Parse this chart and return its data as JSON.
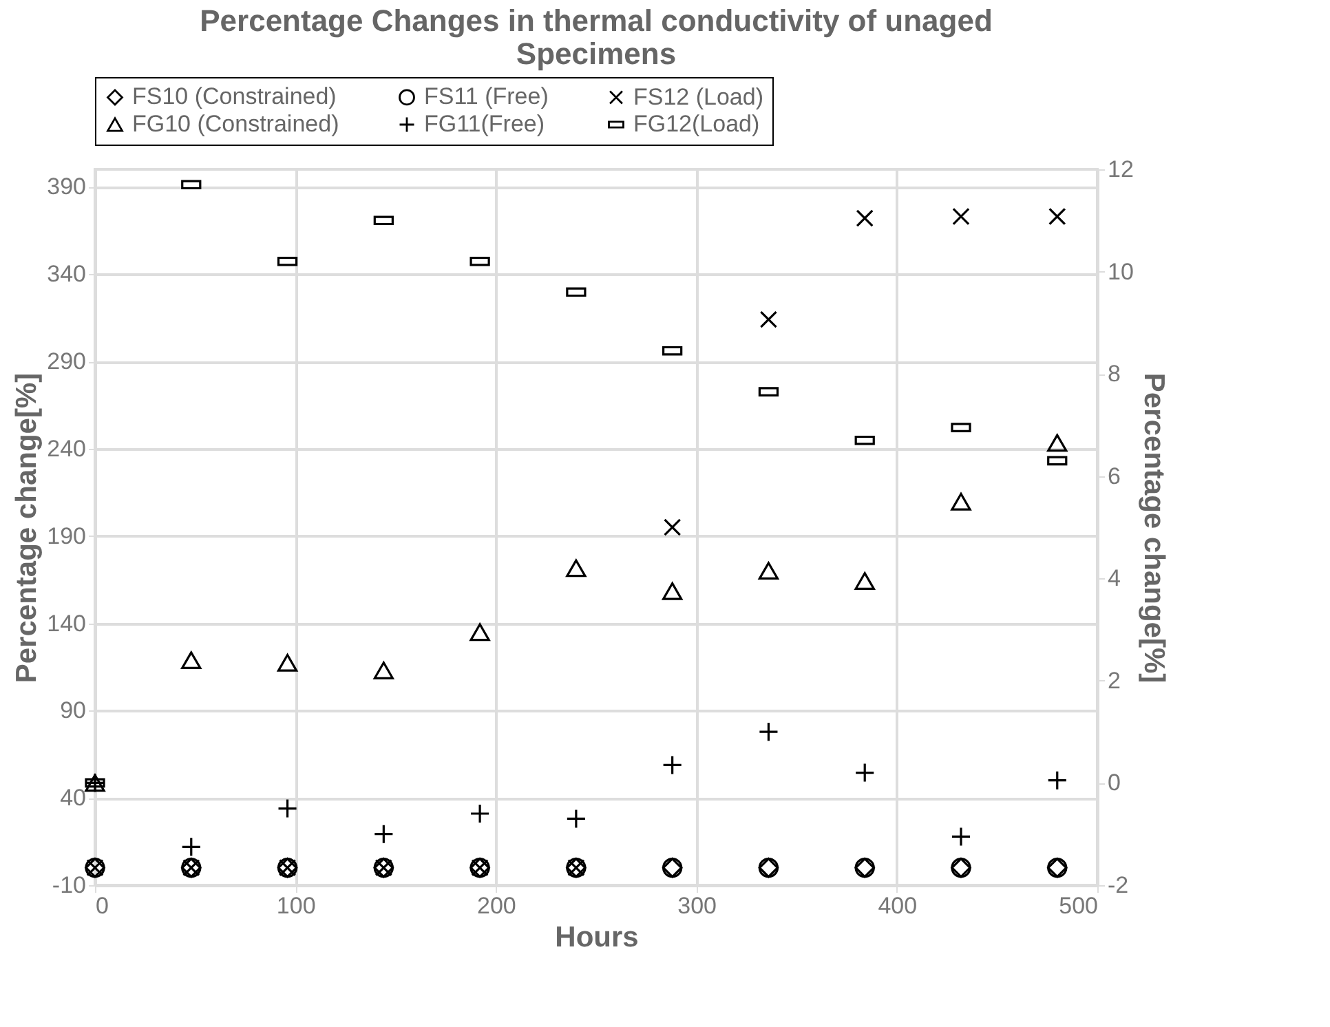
{
  "chart_data": {
    "type": "scatter",
    "title": "Percentage Changes in thermal conductivity of unaged Specimens",
    "xlabel": "Hours",
    "ylabel": "Percentage change[%]",
    "y2label": "Percentage change[%]",
    "x": [
      0,
      48,
      96,
      144,
      192,
      240,
      288,
      336,
      384,
      432,
      480
    ],
    "xlim": [
      0,
      500
    ],
    "xticks": [
      0,
      100,
      200,
      300,
      400,
      500
    ],
    "ylim": [
      -10,
      400
    ],
    "yticks": [
      -10,
      40,
      90,
      140,
      190,
      240,
      290,
      340,
      390
    ],
    "y2lim": [
      -2,
      12
    ],
    "y2ticks": [
      -2,
      0,
      2,
      4,
      6,
      8,
      10,
      12
    ],
    "grid": true,
    "legend": "top",
    "series": [
      {
        "name": "FS10 (Constrained)",
        "color": "#000000",
        "marker": "diamond",
        "values": [
          0,
          0,
          0,
          0,
          0,
          0,
          0,
          0,
          0,
          0,
          0
        ]
      },
      {
        "name": "FS11 (Free)",
        "color": "#000000",
        "marker": "circle",
        "values": [
          0,
          0,
          0,
          0,
          0,
          0,
          0,
          0,
          0,
          0,
          0
        ]
      },
      {
        "name": "FS12 (Load)",
        "color": "#000000",
        "marker": "x",
        "values": [
          0,
          0,
          0,
          0,
          0,
          0,
          195,
          314,
          372,
          373,
          373
        ]
      },
      {
        "name": "FG10 (Constrained)",
        "color": "#000000",
        "marker": "triangle",
        "axis": "y2",
        "values": [
          0,
          2.4,
          2.35,
          2.2,
          2.95,
          4.2,
          3.75,
          4.15,
          3.95,
          5.5,
          6.65
        ]
      },
      {
        "name": "FG11(Free)",
        "color": "#000000",
        "marker": "cross",
        "axis": "y2",
        "values": [
          0,
          -1.25,
          -0.5,
          -1.0,
          -0.6,
          -0.7,
          0.35,
          1.0,
          0.2,
          -1.05,
          0.05
        ]
      },
      {
        "name": "FG12(Load)",
        "color": "#000000",
        "marker": "square",
        "axis": "y2",
        "values": [
          0,
          11.7,
          10.2,
          11.0,
          10.2,
          9.6,
          8.45,
          7.65,
          6.7,
          6.95,
          6.3
        ]
      }
    ]
  }
}
